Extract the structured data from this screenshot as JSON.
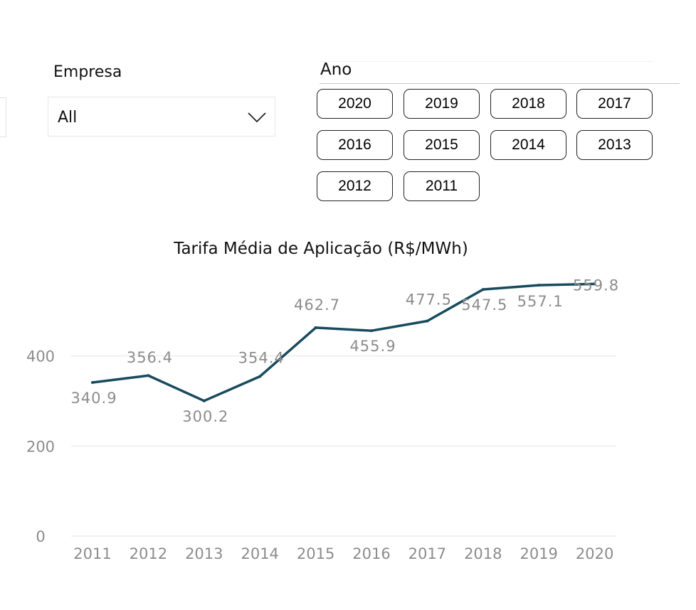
{
  "filters": {
    "empresa": {
      "label": "Empresa",
      "selected": "All"
    },
    "ano": {
      "label": "Ano",
      "options": [
        "2020",
        "2019",
        "2018",
        "2017",
        "2016",
        "2015",
        "2014",
        "2013",
        "2012",
        "2011"
      ]
    }
  },
  "chart_data": {
    "type": "line",
    "title": "Tarifa Média de Aplicação (R$/MWh)",
    "xlabel": "",
    "ylabel": "",
    "categories": [
      "2011",
      "2012",
      "2013",
      "2014",
      "2015",
      "2016",
      "2017",
      "2018",
      "2019",
      "2020"
    ],
    "series": [
      {
        "values": [
          340.9,
          356.4,
          300.2,
          354.4,
          462.7,
          455.9,
          477.5,
          547.5,
          557.1,
          559.8
        ]
      }
    ],
    "data_labels": [
      "340.9",
      "356.4",
      "300.2",
      "354.4",
      "462.7",
      "455.9",
      "477.5",
      "547.5",
      "557.1",
      "559.8"
    ],
    "yticks": [
      "0",
      "200",
      "400"
    ],
    "ylim": [
      0,
      580
    ],
    "grid": true,
    "line_color": "#184b5e",
    "label_color": "#8c8c8c"
  }
}
